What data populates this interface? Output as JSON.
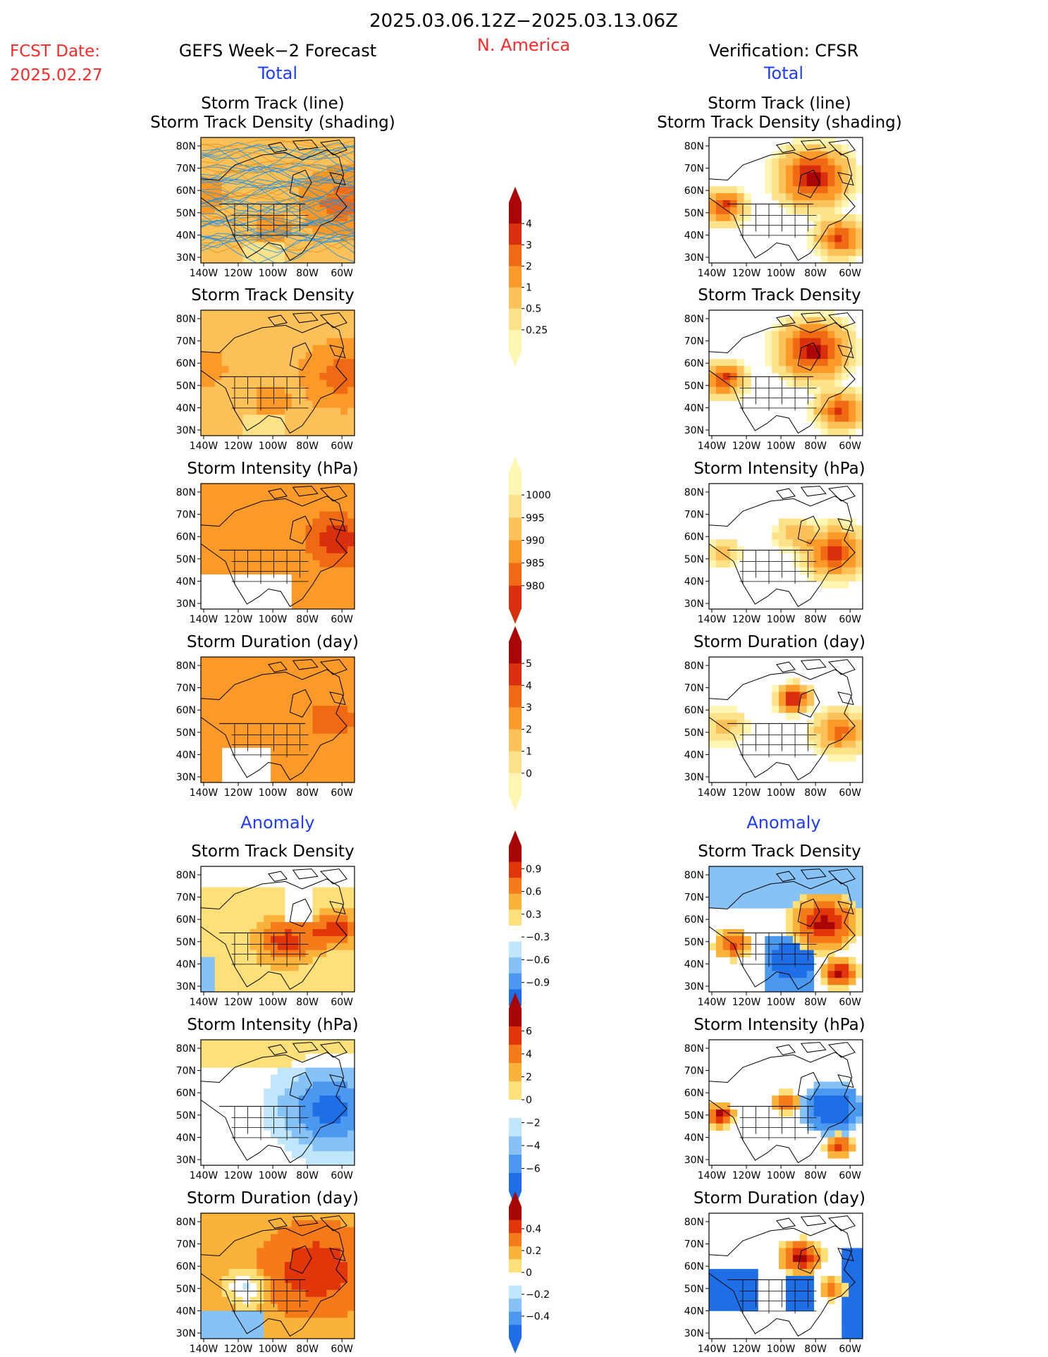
{
  "header": {
    "date_range": "2025.03.06.12Z−2025.03.13.06Z",
    "region": "N. America",
    "fcst_label": "FCST Date:",
    "fcst_date": "2025.02.27",
    "left_title": "GEFS Week−2 Forecast",
    "right_title": "Verification: CFSR",
    "total_label": "Total",
    "anomaly_label": "Anomaly"
  },
  "colors": {
    "title_red": "#ff2a2a",
    "title_blue": "#1f3cff",
    "total_scale": [
      "#fff6b4",
      "#fde28a",
      "#fdc15a",
      "#fb9a28",
      "#f06a14",
      "#d8300c",
      "#aa0606"
    ],
    "anomaly_scale": [
      "#1e6fe6",
      "#4a98f0",
      "#86c2f5",
      "#bfe6fb",
      "#ffffff",
      "#fde07a",
      "#fbb23a",
      "#f47a1a",
      "#e0360a",
      "#a80606"
    ]
  },
  "map_axes": {
    "lat_ticks": [
      "80N",
      "70N",
      "60N",
      "50N",
      "40N",
      "30N"
    ],
    "lon_ticks": [
      "140W",
      "120W",
      "100W",
      "80W",
      "60W"
    ]
  },
  "panels": {
    "track_line_title": [
      "Storm Track (line)",
      "Storm Track Density (shading)"
    ],
    "track_density": "Storm Track Density",
    "intensity": "Storm Intensity (hPa)",
    "duration": "Storm Duration (day)"
  },
  "chart_data": [
    {
      "type": "colorbar",
      "variable": "Storm Track Density (total)",
      "levels": [
        "4",
        "3",
        "2",
        "1",
        "0.5",
        "0.25"
      ]
    },
    {
      "type": "colorbar",
      "variable": "Storm Intensity (total)",
      "levels": [
        "1000",
        "995",
        "990",
        "985",
        "980"
      ]
    },
    {
      "type": "colorbar",
      "variable": "Storm Duration (total)",
      "levels": [
        "5",
        "4",
        "3",
        "2",
        "1",
        "0"
      ]
    },
    {
      "type": "colorbar",
      "variable": "Storm Track Density (anomaly)",
      "levels": [
        "0.9",
        "0.6",
        "0.3",
        "−0.3",
        "−0.6",
        "−0.9"
      ]
    },
    {
      "type": "colorbar",
      "variable": "Storm Intensity (anomaly)",
      "levels": [
        "6",
        "4",
        "2",
        "0",
        "−2",
        "−4",
        "−6"
      ]
    },
    {
      "type": "colorbar",
      "variable": "Storm Duration (anomaly)",
      "levels": [
        "0.4",
        "0.2",
        "0",
        "−0.2",
        "−0.4"
      ]
    }
  ]
}
